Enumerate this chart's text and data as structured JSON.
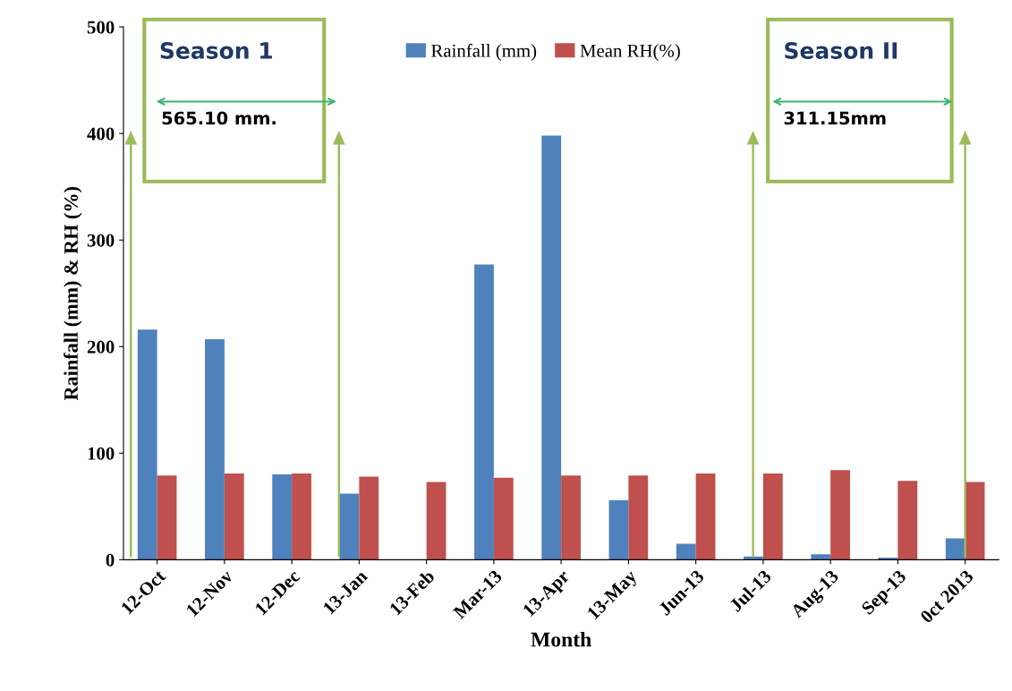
{
  "chart_data": {
    "type": "bar",
    "xlabel": "Month",
    "ylabel": "Rainfall (mm) & RH (%)",
    "categories": [
      "12-Oct",
      "12-Nov",
      "12-Dec",
      "13-Jan",
      "13-Feb",
      "Mar-13",
      "13-Apr",
      "13-May",
      "Jun-13",
      "Jul-13",
      "Aug-13",
      "Sep-13",
      "0ct 2013"
    ],
    "series": [
      {
        "name": "Rainfall (mm)",
        "color": "#4f81bd",
        "values": [
          216,
          207,
          80,
          62,
          0,
          277,
          398,
          56,
          15,
          3,
          5,
          2,
          20
        ]
      },
      {
        "name": "Mean RH(%)",
        "color": "#c0504d",
        "values": [
          79,
          81,
          81,
          78,
          73,
          77,
          79,
          79,
          81,
          81,
          84,
          74,
          73
        ]
      }
    ],
    "ylim": [
      0,
      500
    ],
    "yticks": [
      0,
      100,
      200,
      300,
      400,
      500
    ],
    "grid": false,
    "legend": "top",
    "annotations": [
      "Season 1",
      "565.10 mm.",
      "Season II",
      "311.15mm"
    ]
  }
}
